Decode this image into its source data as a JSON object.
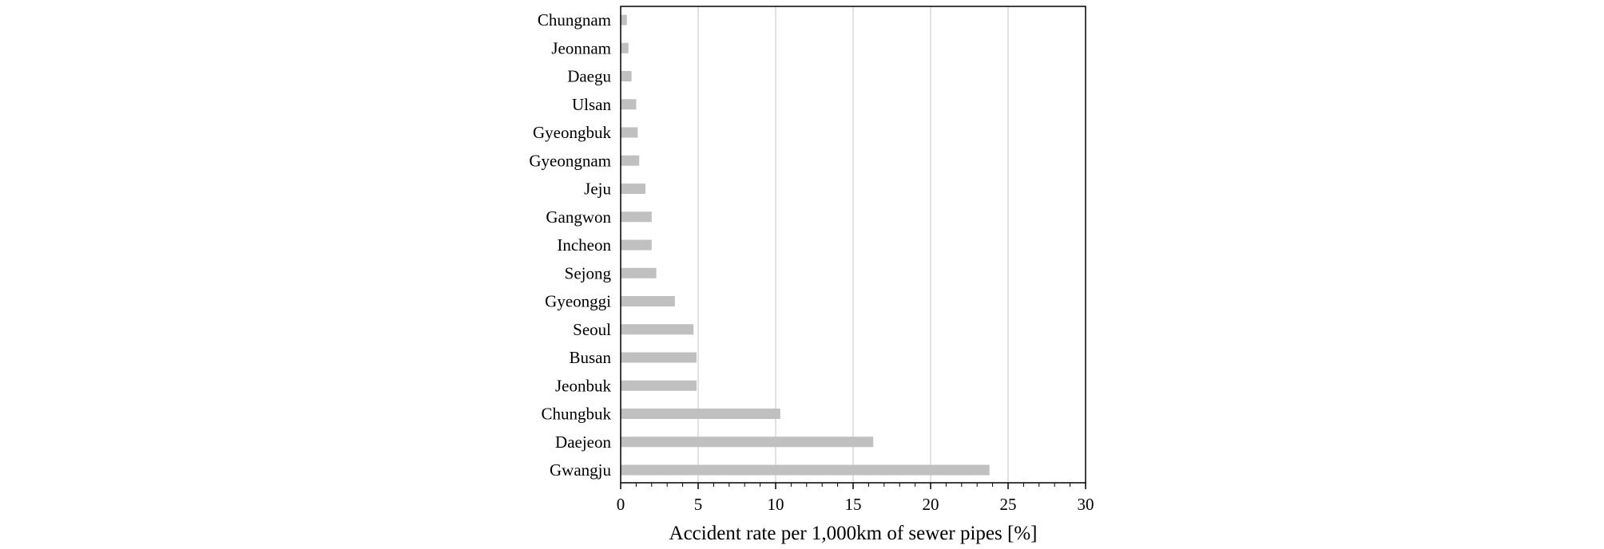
{
  "chart_data": {
    "type": "bar",
    "orientation": "horizontal",
    "categories": [
      "Chungnam",
      "Jeonnam",
      "Daegu",
      "Ulsan",
      "Gyeongbuk",
      "Gyeongnam",
      "Jeju",
      "Gangwon",
      "Incheon",
      "Sejong",
      "Gyeonggi",
      "Seoul",
      "Busan",
      "Jeonbuk",
      "Chungbuk",
      "Daejeon",
      "Gwangju"
    ],
    "values": [
      0.4,
      0.5,
      0.7,
      1.0,
      1.1,
      1.2,
      1.6,
      2.0,
      2.0,
      2.3,
      3.5,
      4.7,
      4.9,
      4.9,
      10.3,
      16.3,
      23.8
    ],
    "xlabel": "Accident rate per 1,000km of sewer pipes [%]",
    "ylabel": "",
    "xlim": [
      0,
      30
    ],
    "xticks": [
      "0",
      "5",
      "10",
      "15",
      "20",
      "25",
      "30"
    ],
    "grid": "vertical",
    "bar_color": "#c0c0c0",
    "grid_color": "#d9d9d9"
  }
}
